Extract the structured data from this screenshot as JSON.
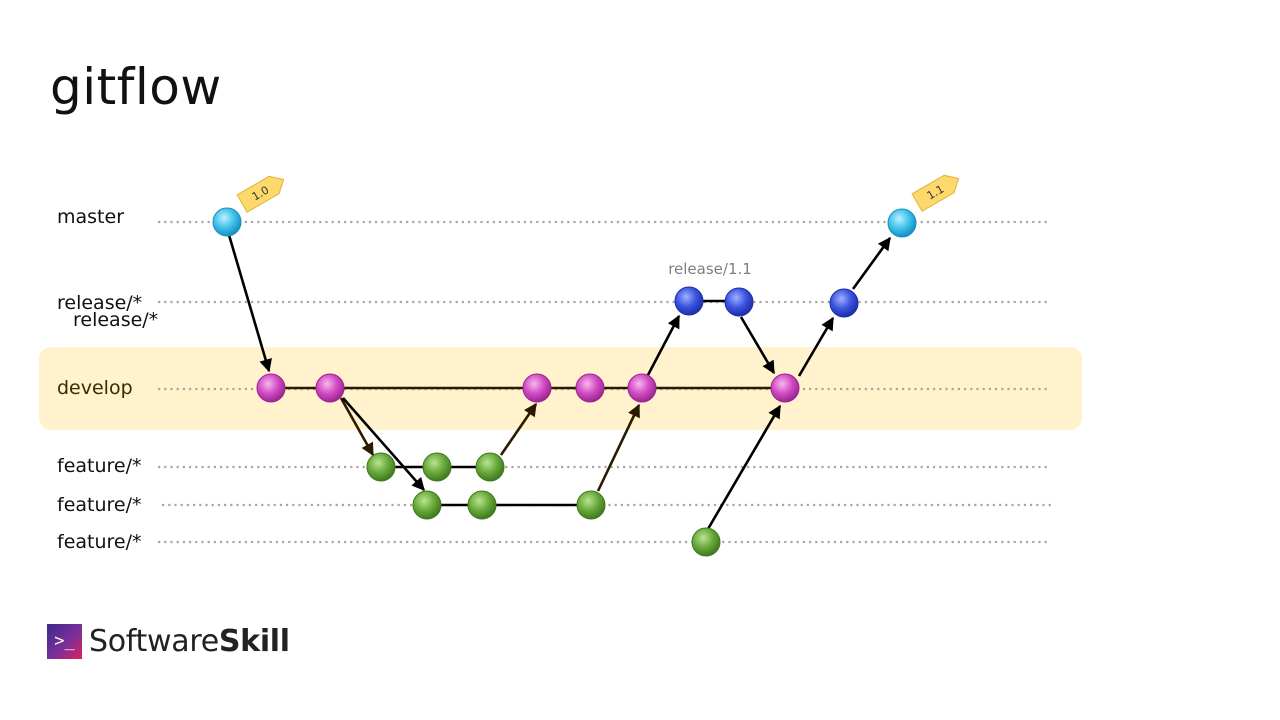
{
  "title": "gitflow",
  "branches": {
    "master": "master",
    "release1": "release/*",
    "release2": "release/*",
    "develop": "develop",
    "feature1": "feature/*",
    "feature2": "feature/*",
    "feature3": "feature/*"
  },
  "annotations": {
    "release_name": "release/1.1"
  },
  "tags": {
    "v10": "1.0",
    "v11": "1.1"
  },
  "logo": {
    "mark": ">_",
    "text_regular": "Software",
    "text_bold": "Skill"
  },
  "colors": {
    "master_commit": "#3fc2ea",
    "release_commit": "#3c54e0",
    "develop_commit": "#d24bc4",
    "feature_commit": "#6aa93c",
    "tag": "#fcd96a",
    "develop_band": "#fff2cc",
    "lane": "#a6a6a6"
  }
}
